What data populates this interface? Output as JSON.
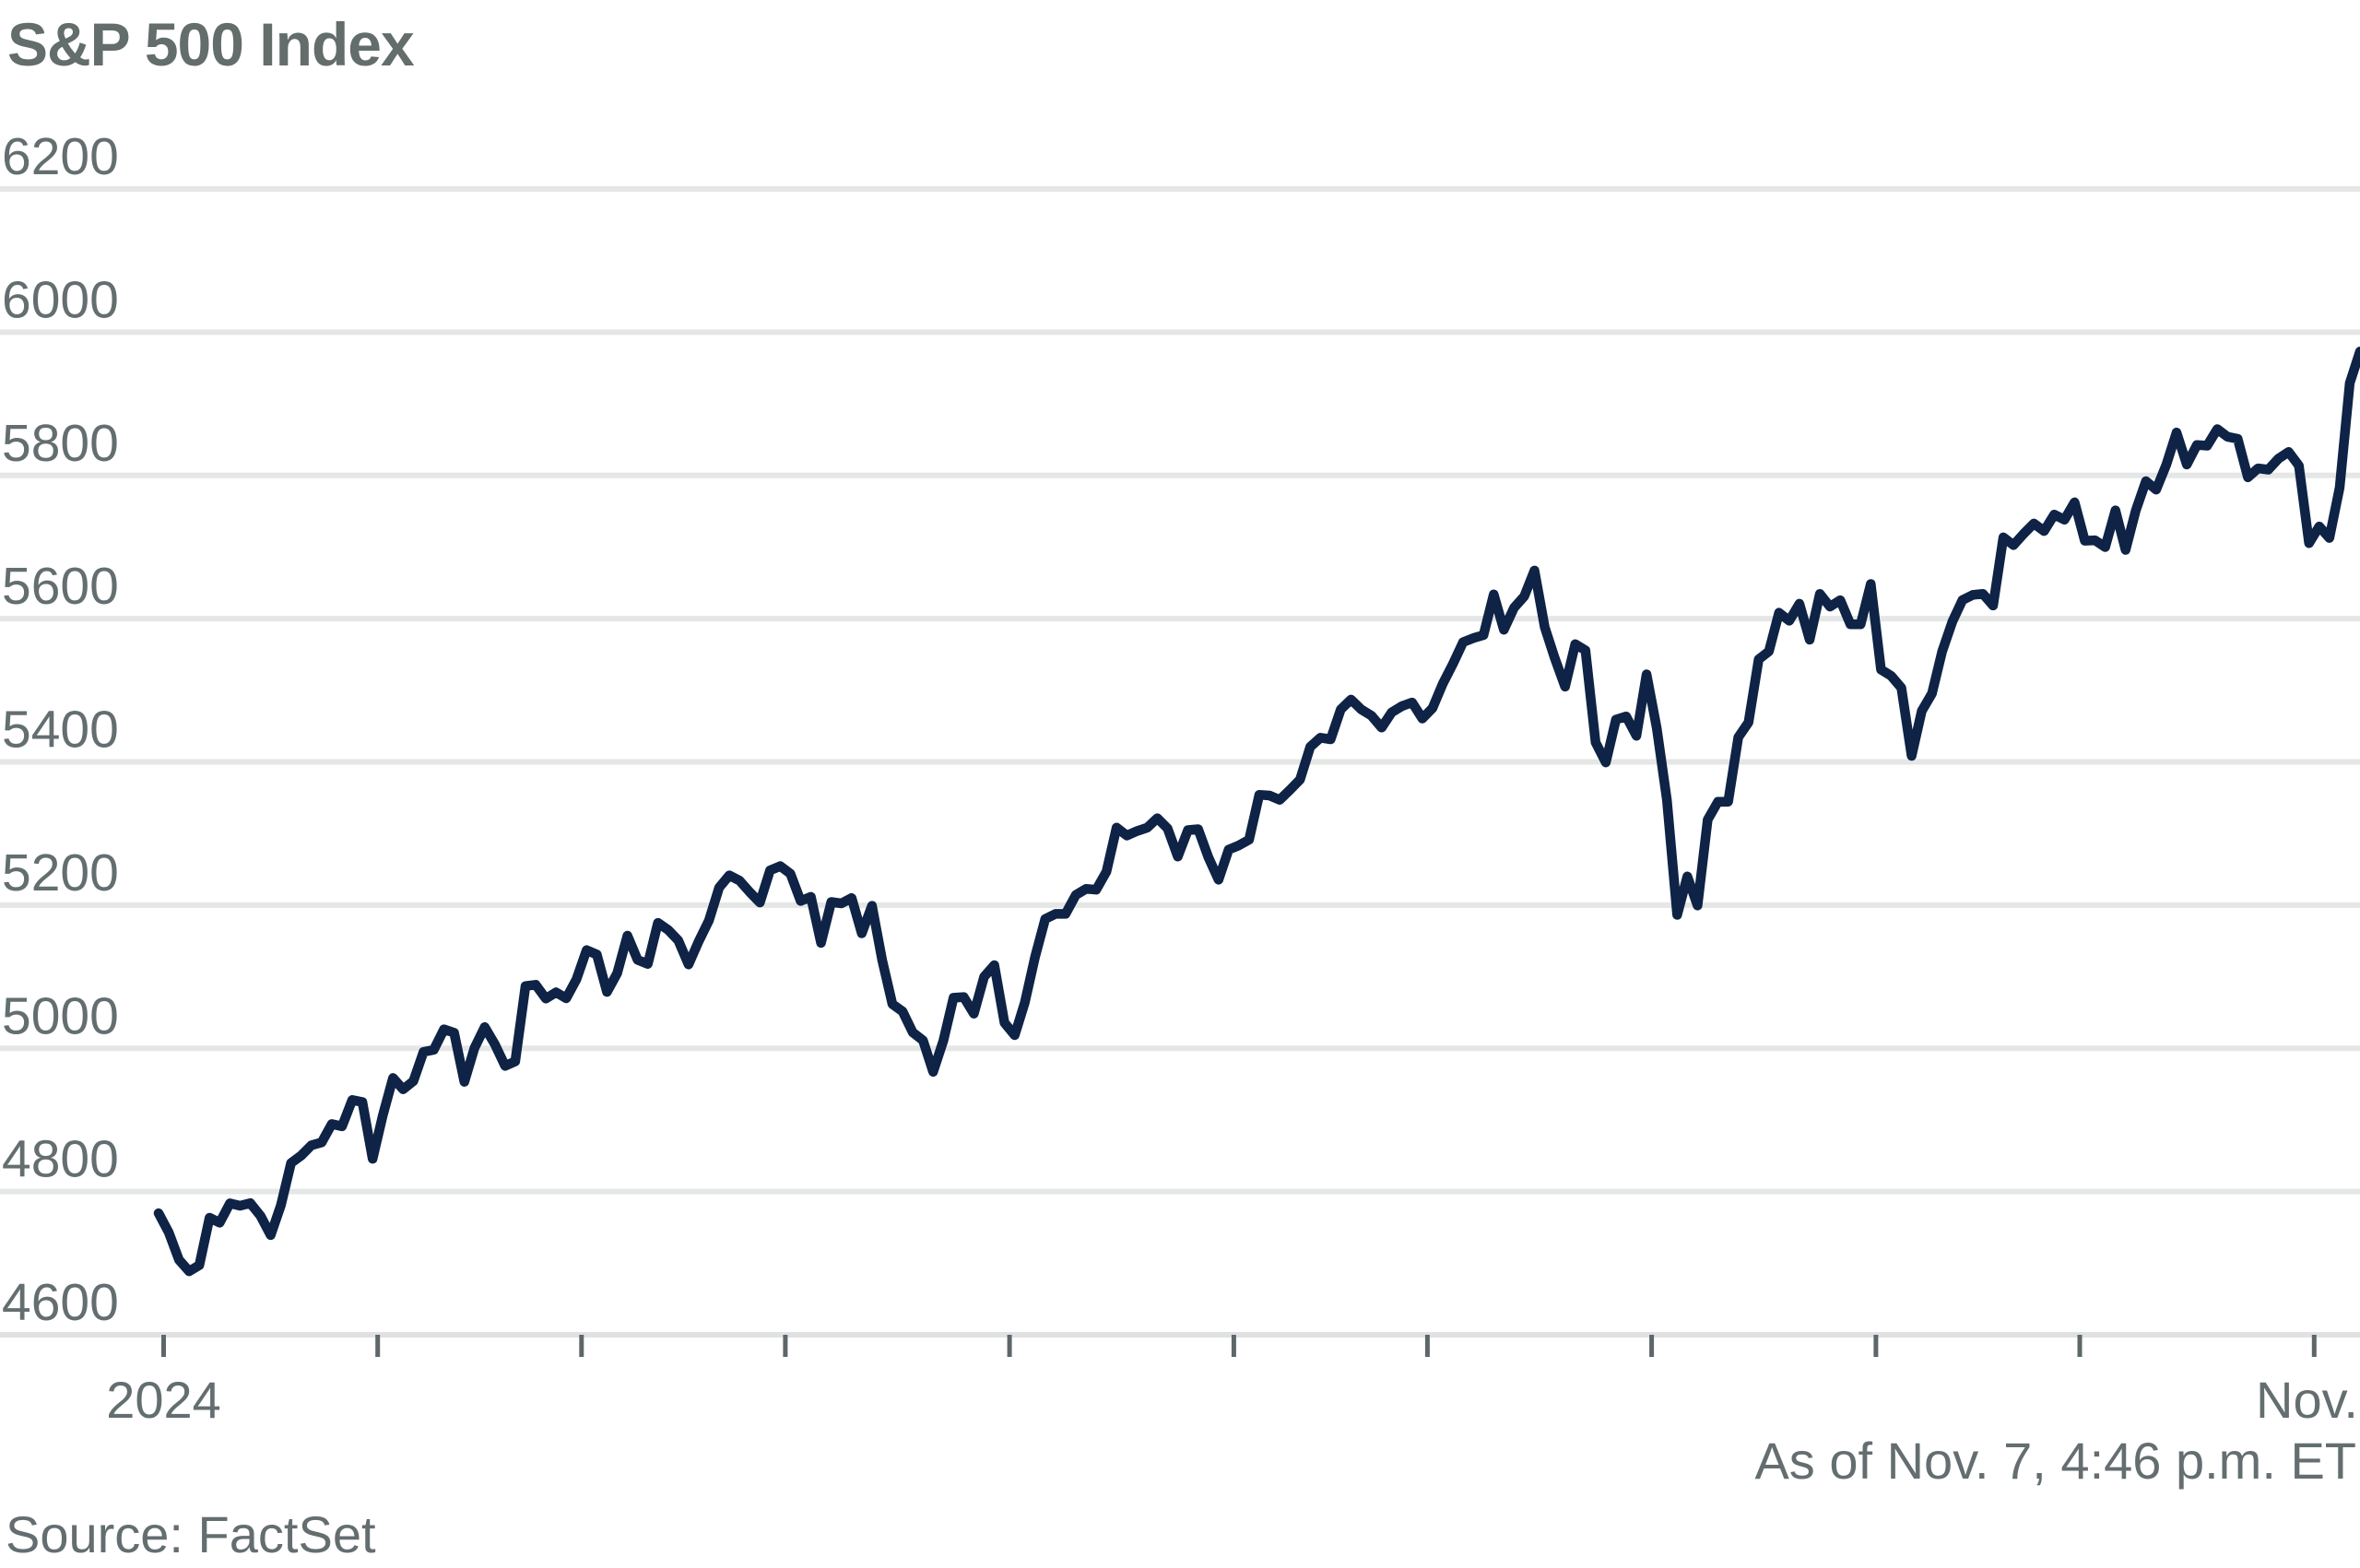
{
  "page": {
    "background": "#ffffff"
  },
  "chart_data": {
    "type": "line",
    "title": "S&P 500 Index",
    "source": "Source: FactSet",
    "as_of": "As of Nov. 7, 4:46 p.m. ET",
    "x_axis": {
      "start_label": "2024",
      "end_label": "Nov.",
      "month_tick_indices": [
        0.5,
        21.5,
        41.5,
        61.5,
        83.5,
        105.5,
        124.5,
        146.5,
        168.5,
        188.5,
        211.5
      ]
    },
    "y_axis": {
      "ticks": [
        4600,
        4800,
        5000,
        5200,
        5400,
        5600,
        5800,
        6000,
        6200
      ],
      "range": [
        4600,
        6200
      ]
    },
    "series": [
      {
        "name": "S&P 500 Index",
        "values": [
          4769.8,
          4742.8,
          4704.8,
          4688.7,
          4697.2,
          4763.5,
          4756.5,
          4783.5,
          4780.2,
          4783.8,
          4766.0,
          4739.2,
          4780.9,
          4839.8,
          4850.4,
          4864.6,
          4868.6,
          4894.2,
          4891.0,
          4927.9,
          4925.0,
          4845.7,
          4906.2,
          4958.6,
          4942.8,
          4954.2,
          4995.1,
          4997.9,
          5026.6,
          5021.8,
          4953.2,
          5000.6,
          5029.7,
          5005.6,
          4975.5,
          4981.8,
          5087.0,
          5088.8,
          5069.5,
          5078.2,
          5069.8,
          5096.3,
          5137.1,
          5131.0,
          5078.7,
          5104.8,
          5157.4,
          5123.7,
          5117.9,
          5175.3,
          5165.3,
          5150.5,
          5117.1,
          5149.4,
          5178.5,
          5224.6,
          5241.5,
          5234.2,
          5218.2,
          5203.6,
          5248.5,
          5254.4,
          5243.8,
          5205.8,
          5211.5,
          5147.2,
          5204.3,
          5202.4,
          5209.9,
          5160.6,
          5199.1,
          5123.4,
          5061.8,
          5051.4,
          5022.2,
          5011.1,
          4967.2,
          5010.6,
          5070.6,
          5071.6,
          5048.4,
          5100.0,
          5116.2,
          5035.7,
          5018.4,
          5064.2,
          5127.8,
          5180.7,
          5187.7,
          5187.7,
          5214.1,
          5222.7,
          5221.4,
          5246.7,
          5308.2,
          5297.1,
          5303.3,
          5308.1,
          5321.4,
          5307.0,
          5267.8,
          5304.7,
          5306.0,
          5267.0,
          5235.5,
          5277.5,
          5283.4,
          5291.3,
          5354.0,
          5353.0,
          5347.0,
          5360.8,
          5375.3,
          5421.0,
          5433.7,
          5431.6,
          5473.2,
          5487.0,
          5473.2,
          5464.6,
          5447.9,
          5469.3,
          5477.9,
          5482.9,
          5460.5,
          5475.1,
          5509.0,
          5537.0,
          5567.2,
          5572.9,
          5577.0,
          5633.9,
          5584.5,
          5615.4,
          5631.2,
          5667.2,
          5588.3,
          5544.6,
          5505.0,
          5564.4,
          5555.7,
          5427.1,
          5399.2,
          5459.1,
          5463.5,
          5436.4,
          5522.3,
          5446.7,
          5346.6,
          5186.3,
          5240.0,
          5199.5,
          5319.3,
          5344.2,
          5344.4,
          5434.4,
          5455.2,
          5543.2,
          5554.3,
          5608.3,
          5597.1,
          5620.9,
          5570.6,
          5634.6,
          5616.8,
          5625.8,
          5592.2,
          5592.0,
          5648.4,
          5528.9,
          5520.1,
          5503.4,
          5408.4,
          5471.1,
          5495.5,
          5554.1,
          5595.8,
          5626.0,
          5633.1,
          5634.6,
          5618.3,
          5713.6,
          5702.6,
          5718.6,
          5732.9,
          5722.3,
          5745.4,
          5738.2,
          5762.5,
          5708.8,
          5709.5,
          5699.9,
          5751.1,
          5695.9,
          5751.1,
          5792.0,
          5780.1,
          5815.0,
          5859.9,
          5815.3,
          5842.5,
          5841.5,
          5864.7,
          5854.0,
          5851.2,
          5797.4,
          5809.9,
          5808.1,
          5823.5,
          5832.9,
          5813.7,
          5705.5,
          5728.8,
          5712.7,
          5782.8,
          5929.0,
          5973.1
        ]
      }
    ],
    "colors": {
      "line": "#0e2345",
      "grid": "#e5e6e6",
      "axis": "#e0e2e2",
      "tick": "#5d6769",
      "text": "#646e70",
      "title": "#636d6b"
    }
  }
}
